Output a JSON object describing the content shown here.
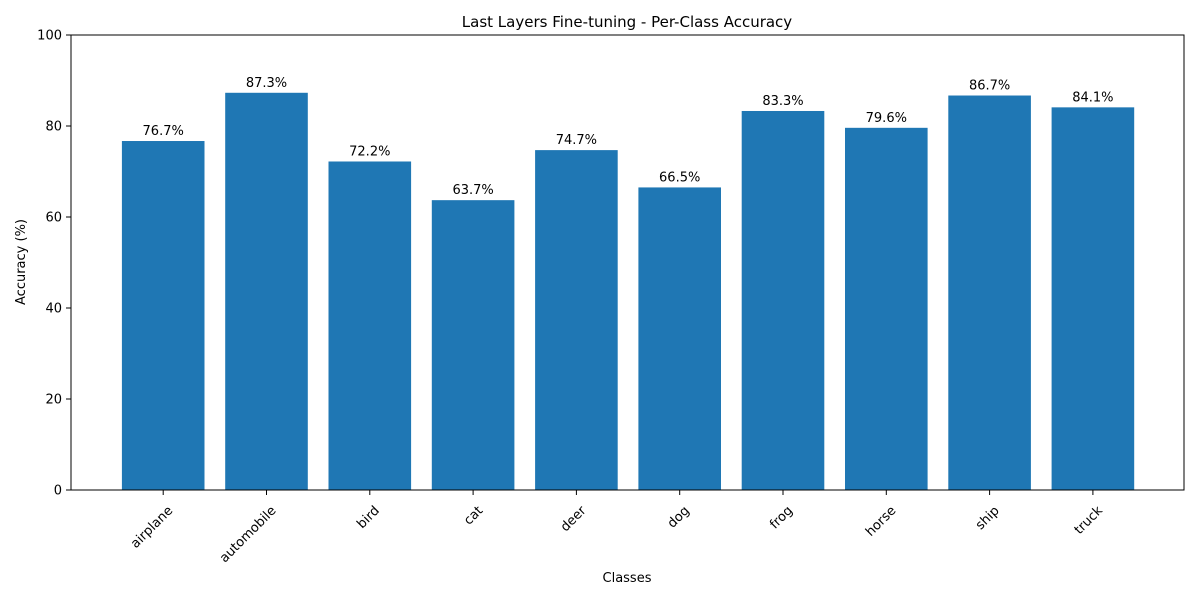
{
  "chart_data": {
    "type": "bar",
    "title": "Last Layers Fine-tuning - Per-Class Accuracy",
    "xlabel": "Classes",
    "ylabel": "Accuracy (%)",
    "ylim": [
      0,
      100
    ],
    "yticks": [
      0,
      20,
      40,
      60,
      80,
      100
    ],
    "categories": [
      "airplane",
      "automobile",
      "bird",
      "cat",
      "deer",
      "dog",
      "frog",
      "horse",
      "ship",
      "truck"
    ],
    "values": [
      76.7,
      87.3,
      72.2,
      63.7,
      74.7,
      66.5,
      83.3,
      79.6,
      86.7,
      84.1
    ],
    "value_labels": [
      "76.7%",
      "87.3%",
      "72.2%",
      "63.7%",
      "74.7%",
      "66.5%",
      "83.3%",
      "79.6%",
      "86.7%",
      "84.1%"
    ],
    "bar_color": "#1f77b4",
    "grid": false,
    "legend": "none"
  }
}
